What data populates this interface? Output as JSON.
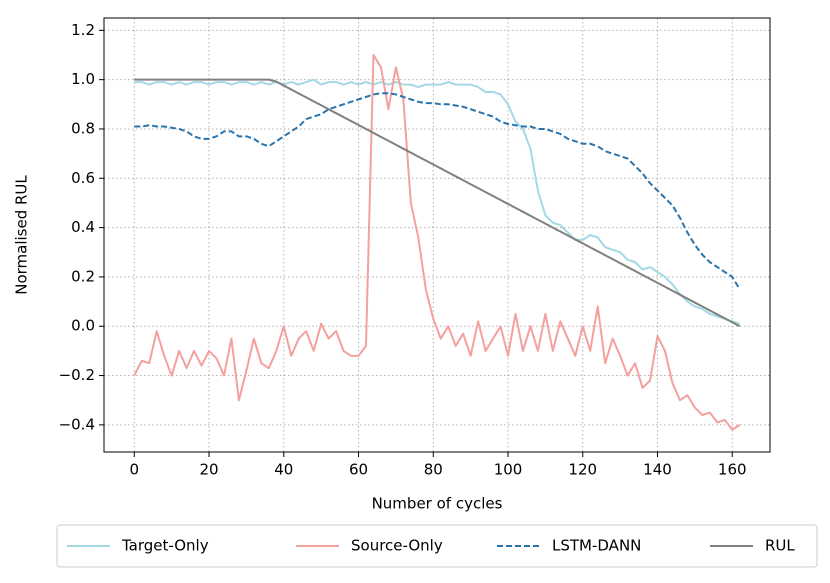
{
  "chart_data": {
    "type": "line",
    "x_label": "Number of cycles",
    "y_label": "Normalised RUL",
    "x": [
      0,
      2,
      4,
      6,
      8,
      10,
      12,
      14,
      16,
      18,
      20,
      22,
      24,
      26,
      28,
      30,
      32,
      34,
      36,
      38,
      40,
      42,
      44,
      46,
      48,
      50,
      52,
      54,
      56,
      58,
      60,
      62,
      64,
      66,
      68,
      70,
      72,
      74,
      76,
      78,
      80,
      82,
      84,
      86,
      88,
      90,
      92,
      94,
      96,
      98,
      100,
      102,
      104,
      106,
      108,
      110,
      112,
      114,
      116,
      118,
      120,
      122,
      124,
      126,
      128,
      130,
      132,
      134,
      136,
      138,
      140,
      142,
      144,
      146,
      148,
      150,
      152,
      154,
      156,
      158,
      160,
      162
    ],
    "series": [
      {
        "name": "Target-Only",
        "color": "#a3d9e5",
        "dash": false,
        "values": [
          0.99,
          0.99,
          0.98,
          0.99,
          0.99,
          0.98,
          0.99,
          0.98,
          0.99,
          0.99,
          0.98,
          0.99,
          0.99,
          0.98,
          0.99,
          0.99,
          0.98,
          0.99,
          0.98,
          0.99,
          0.98,
          0.99,
          0.98,
          0.99,
          1.0,
          0.98,
          0.99,
          0.99,
          0.98,
          0.99,
          0.98,
          0.99,
          0.98,
          0.99,
          0.98,
          0.99,
          0.98,
          0.98,
          0.97,
          0.98,
          0.98,
          0.98,
          0.99,
          0.98,
          0.98,
          0.98,
          0.97,
          0.95,
          0.95,
          0.94,
          0.9,
          0.83,
          0.8,
          0.72,
          0.55,
          0.45,
          0.42,
          0.41,
          0.38,
          0.35,
          0.35,
          0.37,
          0.36,
          0.32,
          0.31,
          0.3,
          0.27,
          0.26,
          0.23,
          0.24,
          0.22,
          0.2,
          0.17,
          0.13,
          0.1,
          0.08,
          0.07,
          0.05,
          0.04,
          0.03,
          0.02,
          0.01
        ]
      },
      {
        "name": "Source-Only",
        "color": "#f4a09e",
        "dash": false,
        "values": [
          -0.2,
          -0.14,
          -0.15,
          -0.02,
          -0.12,
          -0.2,
          -0.1,
          -0.17,
          -0.1,
          -0.16,
          -0.1,
          -0.13,
          -0.2,
          -0.05,
          -0.3,
          -0.18,
          -0.05,
          -0.15,
          -0.17,
          -0.1,
          0.0,
          -0.12,
          -0.05,
          -0.02,
          -0.1,
          0.01,
          -0.05,
          -0.02,
          -0.1,
          -0.12,
          -0.12,
          -0.08,
          1.1,
          1.05,
          0.88,
          1.05,
          0.92,
          0.5,
          0.36,
          0.15,
          0.03,
          -0.05,
          0.0,
          -0.08,
          -0.03,
          -0.12,
          0.02,
          -0.1,
          -0.05,
          0.0,
          -0.12,
          0.05,
          -0.1,
          0.0,
          -0.1,
          0.05,
          -0.1,
          0.02,
          -0.05,
          -0.12,
          0.0,
          -0.1,
          0.08,
          -0.15,
          -0.05,
          -0.12,
          -0.2,
          -0.15,
          -0.25,
          -0.22,
          -0.04,
          -0.1,
          -0.23,
          -0.3,
          -0.28,
          -0.33,
          -0.36,
          -0.35,
          -0.39,
          -0.38,
          -0.42,
          -0.4
        ]
      },
      {
        "name": "LSTM-DANN",
        "color": "#2a74ac",
        "dash": true,
        "values": [
          0.81,
          0.81,
          0.815,
          0.81,
          0.81,
          0.805,
          0.8,
          0.79,
          0.77,
          0.76,
          0.76,
          0.77,
          0.79,
          0.79,
          0.77,
          0.77,
          0.76,
          0.74,
          0.73,
          0.75,
          0.77,
          0.79,
          0.81,
          0.84,
          0.85,
          0.86,
          0.88,
          0.89,
          0.9,
          0.91,
          0.92,
          0.93,
          0.94,
          0.945,
          0.945,
          0.94,
          0.93,
          0.92,
          0.91,
          0.905,
          0.905,
          0.9,
          0.9,
          0.895,
          0.89,
          0.88,
          0.87,
          0.86,
          0.85,
          0.83,
          0.82,
          0.815,
          0.81,
          0.81,
          0.8,
          0.8,
          0.79,
          0.78,
          0.76,
          0.75,
          0.74,
          0.74,
          0.73,
          0.71,
          0.7,
          0.69,
          0.68,
          0.65,
          0.62,
          0.58,
          0.55,
          0.52,
          0.49,
          0.44,
          0.38,
          0.33,
          0.29,
          0.26,
          0.24,
          0.22,
          0.2,
          0.15
        ]
      },
      {
        "name": "RUL",
        "color": "#808080",
        "dash": false,
        "values": [
          1,
          1,
          1,
          1,
          1,
          1,
          1,
          1,
          1,
          1,
          1,
          1,
          1,
          1,
          1,
          1,
          1,
          1,
          1,
          0.992,
          0.976,
          0.96,
          0.944,
          0.928,
          0.912,
          0.896,
          0.88,
          0.864,
          0.848,
          0.832,
          0.816,
          0.8,
          0.784,
          0.768,
          0.752,
          0.736,
          0.72,
          0.704,
          0.688,
          0.672,
          0.656,
          0.64,
          0.624,
          0.608,
          0.592,
          0.576,
          0.56,
          0.544,
          0.528,
          0.512,
          0.496,
          0.48,
          0.464,
          0.448,
          0.432,
          0.416,
          0.4,
          0.384,
          0.368,
          0.352,
          0.336,
          0.32,
          0.304,
          0.288,
          0.272,
          0.256,
          0.24,
          0.224,
          0.208,
          0.192,
          0.176,
          0.16,
          0.144,
          0.128,
          0.112,
          0.096,
          0.08,
          0.064,
          0.048,
          0.032,
          0.016,
          0
        ]
      }
    ],
    "xlim": [
      -8.1,
      170.1
    ],
    "ylim": [
      -0.51,
      1.25
    ],
    "xticks": [
      0,
      20,
      40,
      60,
      80,
      100,
      120,
      140,
      160
    ],
    "yticks": [
      {
        "value": -0.4,
        "label": "−0.4"
      },
      {
        "value": -0.2,
        "label": "−0.2"
      },
      {
        "value": 0,
        "label": "0.0"
      },
      {
        "value": 0.2,
        "label": "0.2"
      },
      {
        "value": 0.4,
        "label": "0.4"
      },
      {
        "value": 0.6,
        "label": "0.6"
      },
      {
        "value": 0.8,
        "label": "0.8"
      },
      {
        "value": 1,
        "label": "1.0"
      },
      {
        "value": 1.2,
        "label": "1.2"
      }
    ],
    "grid": true,
    "legend": "bottom"
  }
}
